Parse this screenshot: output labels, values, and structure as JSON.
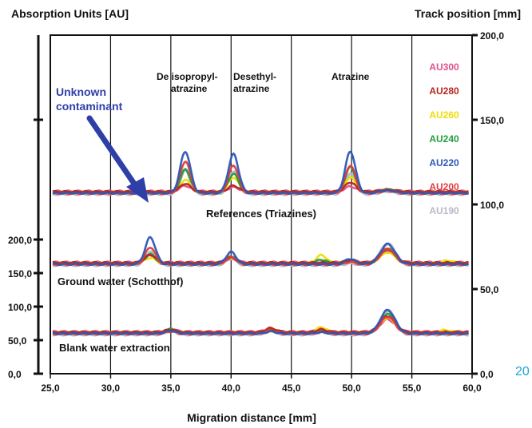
{
  "chart_data": {
    "type": "line",
    "title": "",
    "ylabel_left": "Absorption Units [AU]",
    "ylabel_right": "Track position [mm]",
    "xlabel": "Migration distance [mm]",
    "xlim": [
      25,
      60
    ],
    "ylim_left": [
      0,
      200
    ],
    "ylim_right": [
      0,
      200
    ],
    "x_ticks": [
      "25,0",
      "30,0",
      "35,0",
      "40,0",
      "45,0",
      "50,0",
      "55,0",
      "60,0"
    ],
    "y_ticks_left": [
      "0,0",
      "50,0",
      "100,0",
      "150,0",
      "200,0"
    ],
    "y_ticks_right": [
      "0,0",
      "50,0",
      "100,0",
      "150,0",
      "200,0"
    ],
    "vertical_grid": [
      30,
      35,
      40,
      45,
      50,
      55
    ],
    "legend_position": "right",
    "series": [
      {
        "name": "AU300",
        "color": "#e0508f"
      },
      {
        "name": "AU280",
        "color": "#b3261e"
      },
      {
        "name": "AU260",
        "color": "#f0dc00"
      },
      {
        "name": "AU240",
        "color": "#1f9e3d"
      },
      {
        "name": "AU220",
        "color": "#2b57b5"
      },
      {
        "name": "AU200",
        "color": "#e23b3b"
      },
      {
        "name": "AU190",
        "color": "#b8b8c8"
      }
    ],
    "tracks": [
      {
        "label": "References (Triazines)",
        "baseline_track_mm": 107,
        "peaks": [
          {
            "name": "De isopropyl-\natrazine",
            "x": 36.2,
            "heights": [
              8,
              12,
              18,
              34,
              62,
              48,
              36
            ]
          },
          {
            "name": "Desethyl-\natrazine",
            "x": 40.2,
            "heights": [
              6,
              9,
              22,
              28,
              58,
              42,
              34
            ]
          },
          {
            "name": "Atrazine",
            "x": 49.9,
            "heights": [
              7,
              14,
              22,
              38,
              62,
              42,
              30
            ]
          },
          {
            "x": 53.0,
            "heights": [
              2,
              3,
              3,
              4,
              4,
              4,
              4
            ]
          }
        ]
      },
      {
        "label": "Ground water (Schotthof)",
        "baseline_track_mm": 65,
        "peaks": [
          {
            "x": 33.3,
            "heights": [
              10,
              12,
              8,
              14,
              40,
              26,
              20
            ]
          },
          {
            "x": 40.0,
            "heights": [
              5,
              8,
              8,
              10,
              18,
              12,
              10
            ]
          },
          {
            "x": 47.5,
            "heights": [
              0,
              0,
              12,
              6,
              0,
              0,
              0
            ]
          },
          {
            "x": 49.9,
            "heights": [
              3,
              4,
              4,
              4,
              8,
              4,
              3
            ]
          },
          {
            "x": 53.0,
            "heights": [
              16,
              20,
              16,
              22,
              30,
              24,
              32
            ]
          },
          {
            "x": 58.0,
            "heights": [
              0,
              0,
              4,
              0,
              0,
              0,
              0
            ]
          }
        ]
      },
      {
        "label": "Blank water extraction",
        "baseline_track_mm": 24,
        "peaks": [
          {
            "x": 35.0,
            "heights": [
              3,
              4,
              2,
              6,
              4,
              4,
              6
            ]
          },
          {
            "x": 43.3,
            "heights": [
              4,
              6,
              2,
              5,
              3,
              6,
              8
            ]
          },
          {
            "x": 47.5,
            "heights": [
              3,
              4,
              8,
              3,
              2,
              3,
              5
            ]
          },
          {
            "x": 53.0,
            "heights": [
              18,
              24,
              22,
              28,
              35,
              26,
              36
            ]
          },
          {
            "x": 57.8,
            "heights": [
              0,
              0,
              4,
              0,
              0,
              0,
              0
            ]
          }
        ]
      }
    ],
    "annotation": {
      "text": "Unknown\ncontaminant",
      "target_x": 33.3
    }
  },
  "page_number": "20"
}
